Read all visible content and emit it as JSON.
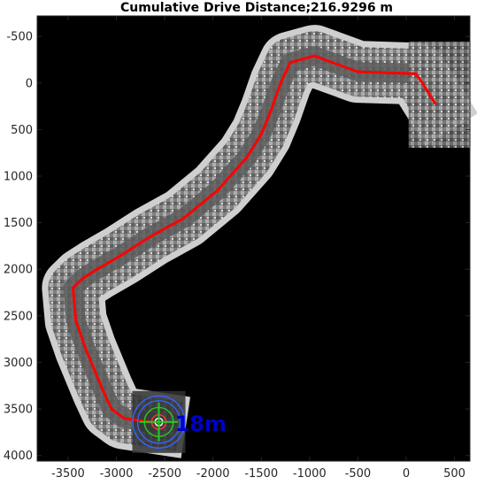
{
  "chart_data": {
    "type": "line",
    "title": "Cumulative Drive Distance;216.9296 m",
    "xlabel": "",
    "ylabel": "",
    "xlim": [
      -3820,
      660
    ],
    "ylim": [
      4060,
      -720
    ],
    "y_reversed": true,
    "grid": false,
    "background": "#000000",
    "x_ticks": [
      -3500,
      -3000,
      -2500,
      -2000,
      -1500,
      -1000,
      -500,
      0,
      500
    ],
    "y_ticks": [
      -500,
      0,
      500,
      1000,
      1500,
      2000,
      2500,
      3000,
      3500,
      4000
    ],
    "tick_labels_x": [
      "-3500",
      "-3000",
      "-2500",
      "-2000",
      "-1500",
      "-1000",
      "-500",
      "0",
      "500"
    ],
    "tick_labels_y": [
      "-500",
      "0",
      "500",
      "1000",
      "1500",
      "2000",
      "2500",
      "3000",
      "3500",
      "4000"
    ],
    "series": [
      {
        "color": "#ff0000",
        "x": [
          300,
          180,
          100,
          -500,
          -950,
          -1200,
          -1300,
          -1400,
          -1500,
          -1650,
          -1950,
          -2300,
          -2650,
          -2950,
          -3200,
          -3350,
          -3450,
          -3420,
          -3320,
          -3220,
          -3140,
          -3050,
          -2920,
          -2600
        ],
        "y": [
          220,
          20,
          -100,
          -120,
          -290,
          -220,
          0,
          300,
          550,
          800,
          1150,
          1450,
          1650,
          1850,
          2000,
          2100,
          2200,
          2550,
          2850,
          3100,
          3300,
          3500,
          3600,
          3650
        ]
      }
    ],
    "annotation": {
      "center": [
        -2560,
        3640
      ],
      "label": "18m",
      "label_color": "#0000cc",
      "rings": [
        {
          "radius": 270,
          "color": "#3366ff"
        },
        {
          "radius": 220,
          "color": "#3366ff"
        },
        {
          "radius": 150,
          "color": "#22cc22"
        },
        {
          "radius": 75,
          "color": "#ff3333"
        },
        {
          "radius": 40,
          "color": "#ffffff"
        }
      ],
      "crosshair_color": "#22cc22"
    }
  }
}
